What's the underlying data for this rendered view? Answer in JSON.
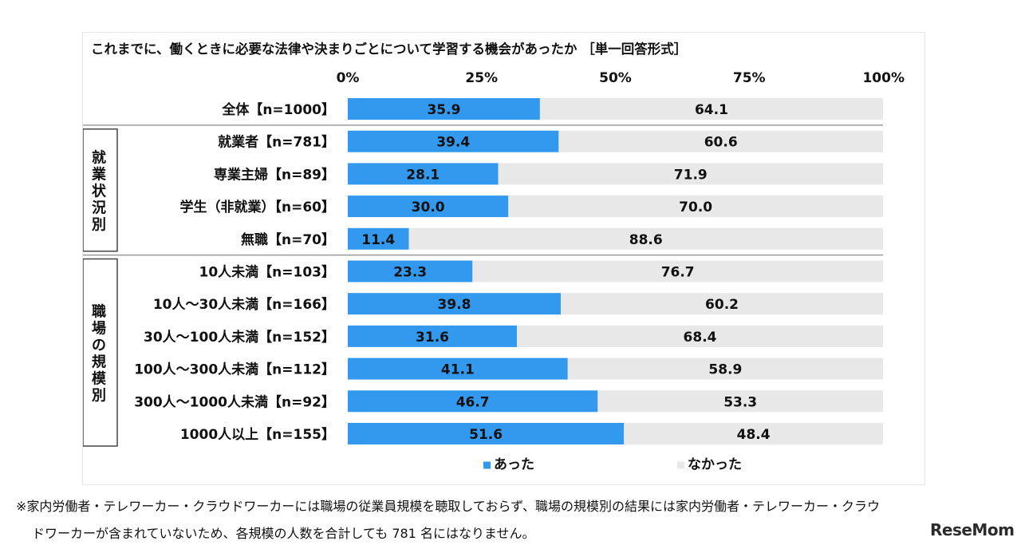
{
  "chart_data": {
    "type": "bar",
    "stacked": true,
    "orientation": "horizontal",
    "title": "これまでに、働くときに必要な法律や決まりごとについて学習する機会があったか ［単一回答形式］",
    "xlim": [
      0,
      100
    ],
    "x_ticks": [
      "0%",
      "25%",
      "50%",
      "75%",
      "100%"
    ],
    "groups": [
      {
        "label": "",
        "start": 0,
        "end": 0
      },
      {
        "label": "就業状況別",
        "start": 1,
        "end": 4
      },
      {
        "label": "職場の規模別",
        "start": 5,
        "end": 10
      }
    ],
    "categories": [
      "全体【n=1000】",
      "就業者【n=781】",
      "専業主婦【n=89】",
      "学生（非就業）【n=60】",
      "無職【n=70】",
      "10人未満【n=103】",
      "10人～30人未満【n=166】",
      "30人～100人未満【n=152】",
      "100人～300人未満【n=112】",
      "300人～1000人未満【n=92】",
      "1000人以上【n=155】"
    ],
    "series": [
      {
        "name": "あった",
        "color": "#3399ee",
        "values": [
          35.9,
          39.4,
          28.1,
          30.0,
          11.4,
          23.3,
          39.8,
          31.6,
          41.1,
          46.7,
          51.6
        ],
        "labels": [
          "35.9",
          "39.4",
          "28.1",
          "30.0",
          "11.4",
          "23.3",
          "39.8",
          "31.6",
          "41.1",
          "46.7",
          "51.6"
        ]
      },
      {
        "name": "なかった",
        "color": "#e8e8e8",
        "values": [
          64.1,
          60.6,
          71.9,
          70.0,
          88.6,
          76.7,
          60.2,
          68.4,
          58.9,
          53.3,
          48.4
        ],
        "labels": [
          "64.1",
          "60.6",
          "71.9",
          "70.0",
          "88.6",
          "76.7",
          "60.2",
          "68.4",
          "58.9",
          "53.3",
          "48.4"
        ]
      }
    ],
    "legend_position": "bottom",
    "grid": false
  },
  "footnote": {
    "line1": "※家内労働者・テレワーカー・クラウドワーカーには職場の従業員規模を聴取しておらず、職場の規模別の結果には家内労働者・テレワーカー・クラウ",
    "line2": "ドワーカーが含まれていないため、各規模の人数を合計しても 781 名にはなりません。"
  },
  "logo": "ReseMom"
}
